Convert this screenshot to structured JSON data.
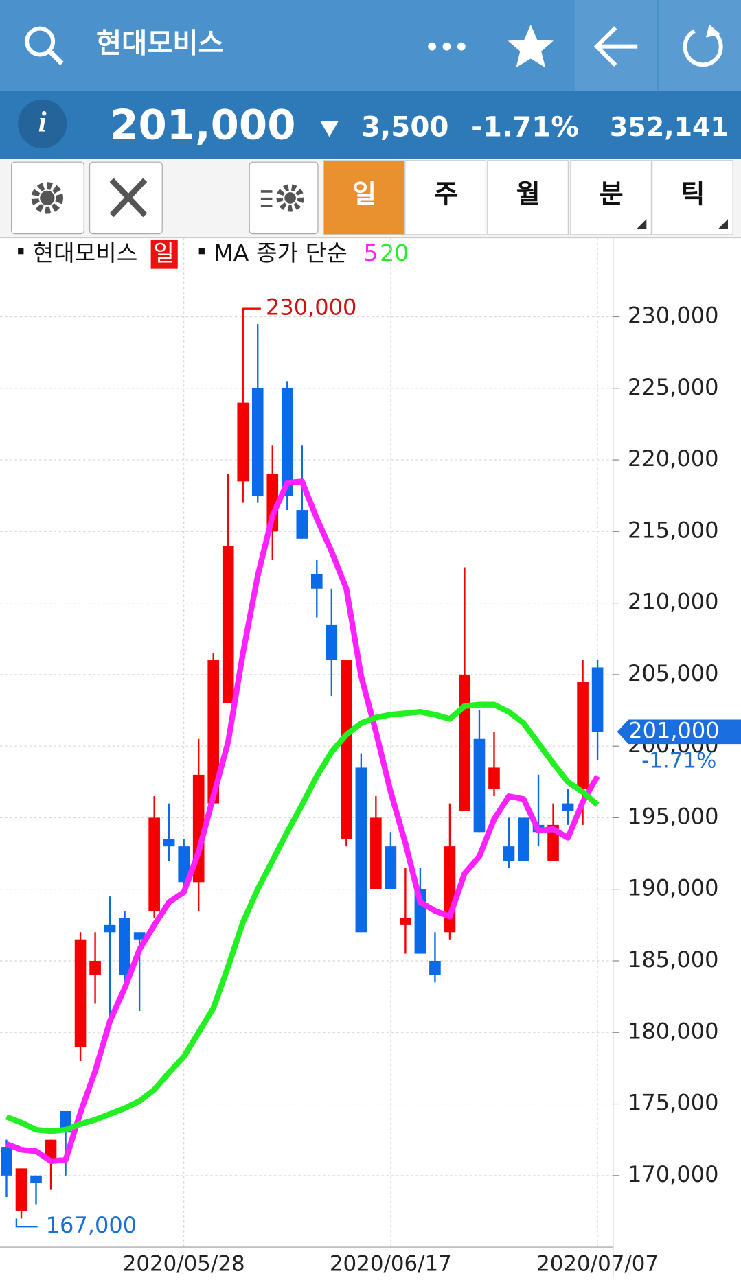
{
  "header": {
    "title": "현대모비스"
  },
  "quote": {
    "price": "201,000",
    "change": "3,500",
    "change_pct": "-1.71%",
    "volume": "352,141"
  },
  "tabs": [
    "일",
    "주",
    "월",
    "분",
    "틱"
  ],
  "chart_data": {
    "type": "candlestick",
    "legend": {
      "stock": "현대모비스",
      "period": "일",
      "ma_label": "MA 종가 단순"
    },
    "categories": [
      null,
      null,
      null,
      null,
      null,
      null,
      null,
      null,
      null,
      null,
      null,
      null,
      "2020/05/28",
      null,
      null,
      null,
      null,
      null,
      null,
      null,
      null,
      null,
      null,
      null,
      null,
      null,
      "2020/06/17",
      null,
      null,
      null,
      null,
      null,
      null,
      null,
      null,
      null,
      null,
      null,
      null,
      null,
      "2020/07/07"
    ],
    "open": [
      172000,
      167500,
      170000,
      171000,
      174500,
      179000,
      184000,
      187500,
      188000,
      187000,
      188500,
      193500,
      193000,
      190500,
      196000,
      203000,
      218500,
      225000,
      215000,
      225000,
      216500,
      212000,
      208500,
      193500,
      198500,
      190000,
      193000,
      187500,
      190000,
      185000,
      187000,
      195500,
      200500,
      197000,
      193000,
      195000,
      194500,
      192000,
      196000,
      197000,
      205500
    ],
    "high": [
      172500,
      170500,
      170000,
      172500,
      174500,
      187000,
      187000,
      189500,
      188500,
      187000,
      196500,
      196000,
      193500,
      200500,
      206500,
      219000,
      230000,
      229500,
      221000,
      225500,
      221000,
      213000,
      211000,
      206000,
      199500,
      196500,
      194000,
      191500,
      191500,
      187000,
      196000,
      212500,
      202500,
      201000,
      195000,
      195000,
      198000,
      196000,
      197000,
      206000,
      206000
    ],
    "low": [
      168500,
      167000,
      168000,
      169000,
      170000,
      178000,
      182000,
      181000,
      183500,
      181500,
      188000,
      192000,
      190000,
      188500,
      196000,
      203000,
      217000,
      217000,
      213000,
      216500,
      214500,
      209000,
      203500,
      193000,
      187000,
      190000,
      190000,
      185500,
      185500,
      183500,
      186500,
      195500,
      194000,
      196500,
      191500,
      192000,
      193000,
      192000,
      194500,
      194500,
      199000
    ],
    "close": [
      170000,
      170500,
      169500,
      172500,
      173000,
      186500,
      185000,
      187000,
      184000,
      186500,
      195000,
      193000,
      190500,
      198000,
      206000,
      214000,
      224000,
      217500,
      219000,
      217500,
      214500,
      211000,
      206000,
      206000,
      187000,
      195000,
      190000,
      188000,
      185500,
      184000,
      193000,
      205000,
      194000,
      198500,
      192000,
      192000,
      194000,
      194500,
      195500,
      204500,
      201000
    ],
    "up_color": "#f40000",
    "down_color": "#0a6ae8",
    "series": [
      {
        "name": "5",
        "color": "#ff22ff",
        "values": [
          172200,
          171800,
          171700,
          171000,
          171100,
          174400,
          177300,
          180800,
          183100,
          185800,
          187500,
          189100,
          189800,
          192600,
          196500,
          200300,
          206500,
          211900,
          216100,
          218400,
          218500,
          215900,
          213600,
          211000,
          204900,
          201000,
          196800,
          193200,
          189100,
          188500,
          188100,
          191100,
          192300,
          194900,
          196500,
          196300,
          194100,
          194200,
          193600,
          196100,
          197900
        ]
      },
      {
        "name": "20",
        "color": "#22f022",
        "values": [
          174100,
          173700,
          173200,
          173100,
          173200,
          173600,
          173900,
          174300,
          174700,
          175200,
          176000,
          177200,
          178300,
          180000,
          181700,
          184600,
          187700,
          190000,
          192000,
          194000,
          195900,
          197900,
          199600,
          200800,
          201600,
          202000,
          202200,
          202300,
          202400,
          202200,
          201900,
          202800,
          202900,
          202900,
          202400,
          201600,
          200200,
          198800,
          197500,
          196800,
          195900
        ]
      }
    ],
    "max_marker": {
      "index": 16,
      "value": 230000,
      "label": "230,000"
    },
    "min_marker": {
      "index": 1,
      "value": 167000,
      "label": "167,000"
    },
    "last_price": {
      "value": 201000,
      "label": "201,000"
    },
    "last_change": "-1.71%",
    "ylim": [
      165000,
      235000
    ],
    "yticks": [
      {
        "value": 170000,
        "label": "170,000"
      },
      {
        "value": 175000,
        "label": "175,000"
      },
      {
        "value": 180000,
        "label": "180,000"
      },
      {
        "value": 185000,
        "label": "185,000"
      },
      {
        "value": 190000,
        "label": "190,000"
      },
      {
        "value": 195000,
        "label": "195,000"
      },
      {
        "value": 200000,
        "label": "200,000"
      },
      {
        "value": 205000,
        "label": "205,000"
      },
      {
        "value": 210000,
        "label": "210,000"
      },
      {
        "value": 215000,
        "label": "215,000"
      },
      {
        "value": 220000,
        "label": "220,000"
      },
      {
        "value": 225000,
        "label": "225,000"
      },
      {
        "value": 230000,
        "label": "230,000"
      }
    ],
    "grid": true
  }
}
